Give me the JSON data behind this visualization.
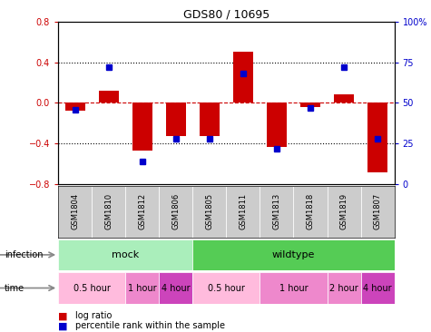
{
  "title": "GDS80 / 10695",
  "samples": [
    "GSM1804",
    "GSM1810",
    "GSM1812",
    "GSM1806",
    "GSM1805",
    "GSM1811",
    "GSM1813",
    "GSM1818",
    "GSM1819",
    "GSM1807"
  ],
  "log_ratio": [
    -0.08,
    0.12,
    -0.47,
    -0.33,
    -0.33,
    0.5,
    -0.43,
    -0.04,
    0.08,
    -0.68
  ],
  "percentile": [
    46,
    72,
    14,
    28,
    28,
    68,
    22,
    47,
    72,
    28
  ],
  "ylim": [
    -0.8,
    0.8
  ],
  "yticks_left": [
    -0.8,
    -0.4,
    0.0,
    0.4,
    0.8
  ],
  "yticks_right": [
    0,
    25,
    50,
    75,
    100
  ],
  "bar_color": "#cc0000",
  "dot_color": "#0000cc",
  "zero_line_color": "#cc0000",
  "grid_color": "#000000",
  "infection_groups": [
    {
      "label": "mock",
      "start": 0,
      "end": 4,
      "color": "#aaeebb"
    },
    {
      "label": "wildtype",
      "start": 4,
      "end": 10,
      "color": "#55cc55"
    }
  ],
  "time_groups": [
    {
      "label": "0.5 hour",
      "start": 0,
      "end": 2,
      "color": "#ffbbdd"
    },
    {
      "label": "1 hour",
      "start": 2,
      "end": 3,
      "color": "#ee88cc"
    },
    {
      "label": "4 hour",
      "start": 3,
      "end": 4,
      "color": "#cc44bb"
    },
    {
      "label": "0.5 hour",
      "start": 4,
      "end": 6,
      "color": "#ffbbdd"
    },
    {
      "label": "1 hour",
      "start": 6,
      "end": 8,
      "color": "#ee88cc"
    },
    {
      "label": "2 hour",
      "start": 8,
      "end": 9,
      "color": "#ee88cc"
    },
    {
      "label": "4 hour",
      "start": 9,
      "end": 10,
      "color": "#cc44bb"
    }
  ],
  "legend_items": [
    "log ratio",
    "percentile rank within the sample"
  ],
  "legend_colors": [
    "#cc0000",
    "#0000cc"
  ],
  "sample_bg_color": "#cccccc"
}
